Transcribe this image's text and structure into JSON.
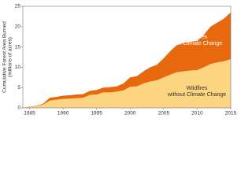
{
  "chart_data": {
    "type": "stacked-area",
    "ylabel": [
      "Cumulative Forest Area Burned",
      "(millions of acres)"
    ],
    "x": [
      1984,
      1985,
      1986,
      1987,
      1988,
      1989,
      1990,
      1991,
      1992,
      1993,
      1994,
      1995,
      1996,
      1997,
      1998,
      1999,
      2000,
      2001,
      2002,
      2003,
      2004,
      2005,
      2006,
      2007,
      2008,
      2009,
      2010,
      2011,
      2012,
      2013,
      2014,
      2015
    ],
    "series": [
      {
        "name": "Wildfires without Climate Change",
        "color": "#fdd47f",
        "values": [
          0,
          0.2,
          0.4,
          0.8,
          1.8,
          2.0,
          2.2,
          2.3,
          2.4,
          2.5,
          3.2,
          3.3,
          3.8,
          3.8,
          4.0,
          4.3,
          5.2,
          5.3,
          6.0,
          6.5,
          6.8,
          7.5,
          8.2,
          8.8,
          9.0,
          9.2,
          9.3,
          10.0,
          10.8,
          11.2,
          11.5,
          12.0
        ]
      },
      {
        "name": "Wildfires with Climate Change",
        "color": "#e8680e",
        "values": [
          0,
          0.1,
          0.1,
          0.2,
          0.7,
          0.7,
          0.8,
          0.8,
          0.9,
          0.9,
          1.0,
          1.1,
          1.2,
          1.3,
          1.3,
          1.7,
          2.3,
          2.5,
          3.0,
          3.5,
          3.8,
          4.7,
          5.8,
          6.7,
          7.0,
          7.1,
          7.2,
          8.0,
          9.2,
          9.8,
          10.5,
          11.5
        ]
      }
    ],
    "annotations": [
      [
        "Wildfires",
        "with Climate Change"
      ],
      [
        "Wildfires",
        "without Climate Change"
      ]
    ],
    "xlim": [
      1984,
      2015
    ],
    "xticks": [
      1985,
      1990,
      1995,
      2000,
      2005,
      2010,
      2015
    ],
    "ylim": [
      0,
      25
    ],
    "yticks": [
      0,
      5,
      10,
      15,
      20,
      25
    ],
    "grid": false
  }
}
